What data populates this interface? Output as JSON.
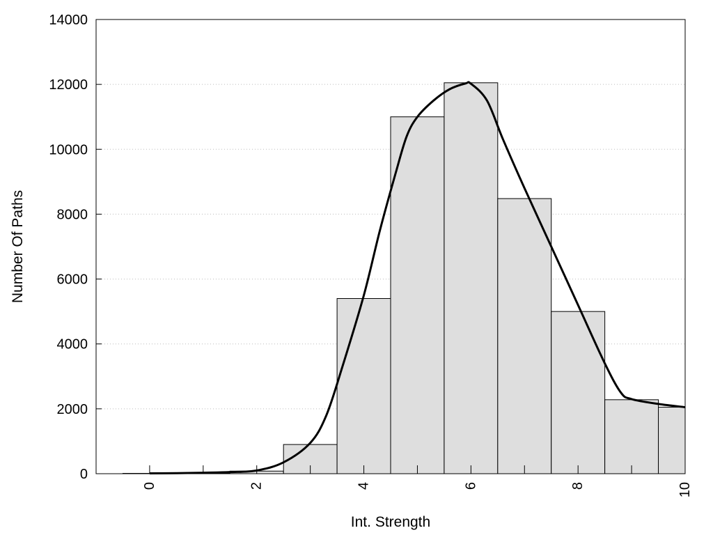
{
  "chart_data": {
    "type": "bar",
    "xlabel": "Int. Strength",
    "ylabel": "Number Of Paths",
    "xlim": [
      -1,
      10
    ],
    "ylim": [
      0,
      14000
    ],
    "xticks": [
      0,
      2,
      4,
      6,
      8,
      10
    ],
    "xtick_labels": [
      "0",
      "2",
      "4",
      "6",
      "8",
      "10"
    ],
    "yticks": [
      0,
      2000,
      4000,
      6000,
      8000,
      10000,
      12000,
      14000
    ],
    "ytick_labels": [
      "0",
      "2000",
      "4000",
      "6000",
      "8000",
      "10000",
      "12000",
      "14000"
    ],
    "grid": "horizontal-dotted",
    "bin_width": 1,
    "bars": {
      "x": [
        0,
        1,
        2,
        3,
        4,
        5,
        6,
        7,
        8,
        9,
        10
      ],
      "values": [
        10,
        20,
        80,
        900,
        5400,
        11000,
        12050,
        8480,
        5000,
        2280,
        2050
      ]
    },
    "curve": {
      "x": [
        0,
        0.5,
        1,
        1.5,
        2,
        2.5,
        3,
        3.3,
        3.6,
        4,
        4.3,
        4.6,
        4.8,
        5,
        5.3,
        5.6,
        5.9,
        6,
        6.3,
        6.6,
        7,
        7.5,
        8,
        8.5,
        8.8,
        9,
        9.5,
        10
      ],
      "y": [
        10,
        15,
        30,
        50,
        100,
        350,
        950,
        1800,
        3300,
        5500,
        7500,
        9300,
        10400,
        11000,
        11500,
        11850,
        12030,
        12020,
        11500,
        10300,
        8800,
        7000,
        5200,
        3400,
        2500,
        2300,
        2150,
        2050
      ]
    }
  }
}
